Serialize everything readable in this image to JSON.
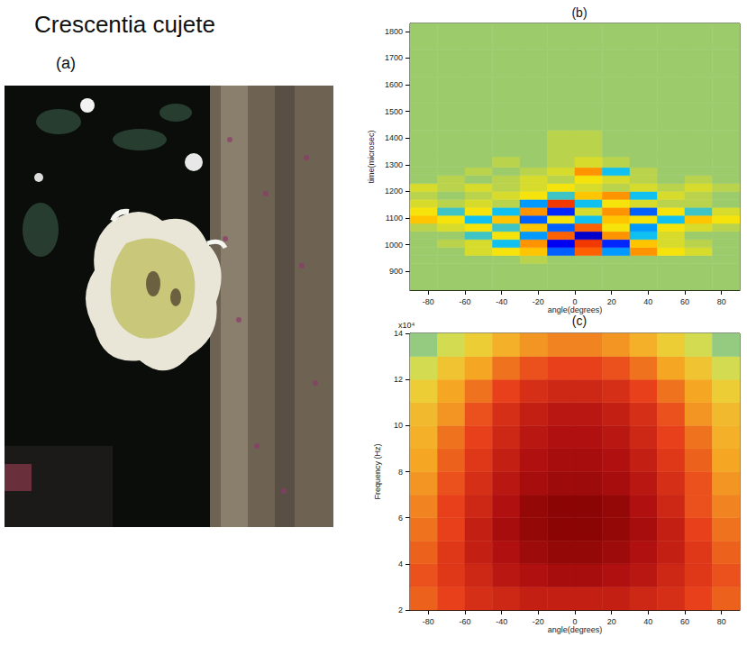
{
  "title": "Crescentia cujete",
  "photo": {
    "label": "(a)"
  },
  "chart_data": [
    {
      "type": "heatmap",
      "title": "(b)",
      "xlabel": "angle(degrees)",
      "ylabel": "time(microsec)",
      "xlim": [
        -90,
        90
      ],
      "xticks": [
        -80,
        -60,
        -40,
        -20,
        0,
        20,
        40,
        60,
        80
      ],
      "ylim": [
        830,
        1830
      ],
      "yticks": [
        900,
        1000,
        1100,
        1200,
        1300,
        1400,
        1500,
        1600,
        1700,
        1800
      ],
      "grid": false,
      "zlim": [
        -1,
        1
      ],
      "x_bins": [
        -90,
        -75,
        -60,
        -45,
        -30,
        -15,
        0,
        15,
        30,
        45,
        60,
        75,
        90
      ],
      "y_bins": [
        830,
        930,
        960,
        990,
        1020,
        1050,
        1080,
        1110,
        1140,
        1170,
        1200,
        1230,
        1260,
        1290,
        1330,
        1430,
        1530,
        1630,
        1730,
        1830
      ],
      "cells": [
        [
          0,
          0,
          0,
          0,
          0,
          0,
          0,
          0,
          0,
          0,
          0,
          0
        ],
        [
          0,
          0,
          0,
          0,
          0.1,
          0,
          0,
          0,
          0,
          0,
          0,
          0
        ],
        [
          0,
          0,
          0.2,
          0.3,
          0.4,
          -0.5,
          0.6,
          -0.4,
          0.5,
          0.3,
          0.2,
          0
        ],
        [
          0,
          0.1,
          0.2,
          -0.3,
          0.5,
          -0.7,
          0.7,
          -0.6,
          0.4,
          0.2,
          0.1,
          0
        ],
        [
          0,
          0,
          -0.2,
          0.3,
          -0.4,
          0.6,
          -0.8,
          0.5,
          -0.3,
          0.2,
          0,
          0
        ],
        [
          0.1,
          0.2,
          0.3,
          -0.2,
          0.4,
          -0.5,
          0.6,
          0.3,
          -0.4,
          0.3,
          0.2,
          0.1
        ],
        [
          0.4,
          0.3,
          -0.3,
          0.4,
          -0.5,
          0.3,
          -0.3,
          0.4,
          0.3,
          -0.3,
          0.4,
          0.3
        ],
        [
          0.3,
          -0.2,
          0.3,
          -0.3,
          0.5,
          -0.6,
          0.2,
          0.5,
          -0.5,
          0.3,
          -0.2,
          0.2
        ],
        [
          0.2,
          0.1,
          0.2,
          0.1,
          -0.4,
          0.7,
          -0.3,
          0.3,
          0.2,
          0.1,
          0.1,
          0
        ],
        [
          0.1,
          0,
          0.1,
          0.2,
          0.3,
          -0.2,
          0.4,
          0.5,
          -0.3,
          0.2,
          0.1,
          0
        ],
        [
          0.2,
          0.1,
          0.2,
          0.1,
          0.2,
          0.3,
          0.2,
          0.1,
          0.2,
          0.1,
          0.2,
          0.1
        ],
        [
          0,
          0.1,
          0,
          0.1,
          0.2,
          0.1,
          0.3,
          0.2,
          0.1,
          0,
          0.1,
          0
        ],
        [
          0,
          0,
          0.1,
          0,
          0.1,
          0.2,
          0.5,
          -0.3,
          0.1,
          0,
          0,
          0
        ],
        [
          0,
          0,
          0,
          0.1,
          0,
          0.1,
          0.2,
          0.1,
          0,
          0,
          0,
          0
        ],
        [
          0,
          0,
          0,
          0,
          0,
          0.1,
          0.1,
          0,
          0,
          0,
          0,
          0
        ],
        [
          0,
          0,
          0,
          0,
          0,
          0,
          0,
          0,
          0,
          0,
          0,
          0
        ],
        [
          0,
          0,
          0,
          0,
          0,
          0,
          0,
          0,
          0,
          0,
          0,
          0
        ],
        [
          0,
          0,
          0,
          0,
          0,
          0,
          0,
          0,
          0,
          0,
          0,
          0
        ],
        [
          0,
          0,
          0,
          0,
          0,
          0,
          0,
          0,
          0,
          0,
          0,
          0
        ]
      ]
    },
    {
      "type": "heatmap",
      "title": "(c)",
      "xlabel": "angle(degrees)",
      "ylabel": "Frequency (Hz)",
      "annotations": [
        "x10⁴"
      ],
      "xlim": [
        -90,
        90
      ],
      "xticks": [
        -80,
        -60,
        -40,
        -20,
        0,
        20,
        40,
        60,
        80
      ],
      "ylim": [
        2,
        14
      ],
      "yticks": [
        2,
        4,
        6,
        8,
        10,
        12,
        14
      ],
      "grid": false,
      "zlim": [
        -30,
        0
      ],
      "x_bins": [
        -90,
        -75,
        -60,
        -45,
        -30,
        -15,
        0,
        15,
        30,
        45,
        60,
        75,
        90
      ],
      "y_bins": [
        2,
        3,
        4,
        5,
        6,
        7,
        8,
        9,
        10,
        11,
        12,
        13,
        14
      ],
      "cells": [
        [
          -14,
          -12,
          -10,
          -9,
          -8,
          -8,
          -8,
          -8,
          -9,
          -10,
          -12,
          -14
        ],
        [
          -13,
          -11,
          -9,
          -7,
          -6,
          -5,
          -5,
          -6,
          -7,
          -9,
          -11,
          -13
        ],
        [
          -14,
          -11,
          -8,
          -6,
          -4,
          -3,
          -3,
          -4,
          -6,
          -8,
          -11,
          -14
        ],
        [
          -15,
          -12,
          -8,
          -5,
          -3,
          -2,
          -2,
          -3,
          -5,
          -8,
          -12,
          -15
        ],
        [
          -16,
          -12,
          -9,
          -6,
          -3,
          -2,
          -2,
          -3,
          -6,
          -9,
          -13,
          -16
        ],
        [
          -17,
          -13,
          -10,
          -7,
          -5,
          -4,
          -4,
          -5,
          -7,
          -10,
          -13,
          -17
        ],
        [
          -18,
          -14,
          -11,
          -8,
          -6,
          -5,
          -5,
          -6,
          -8,
          -11,
          -14,
          -18
        ],
        [
          -19,
          -15,
          -12,
          -9,
          -7,
          -6,
          -6,
          -7,
          -9,
          -12,
          -15,
          -19
        ],
        [
          -20,
          -17,
          -13,
          -10,
          -8,
          -7,
          -7,
          -8,
          -10,
          -13,
          -17,
          -20
        ],
        [
          -22,
          -18,
          -15,
          -12,
          -10,
          -9,
          -9,
          -10,
          -12,
          -15,
          -18,
          -22
        ],
        [
          -25,
          -21,
          -18,
          -15,
          -13,
          -12,
          -12,
          -13,
          -15,
          -18,
          -21,
          -25
        ],
        [
          -28,
          -25,
          -22,
          -19,
          -17,
          -16,
          -16,
          -17,
          -19,
          -22,
          -25,
          -28
        ]
      ]
    }
  ]
}
